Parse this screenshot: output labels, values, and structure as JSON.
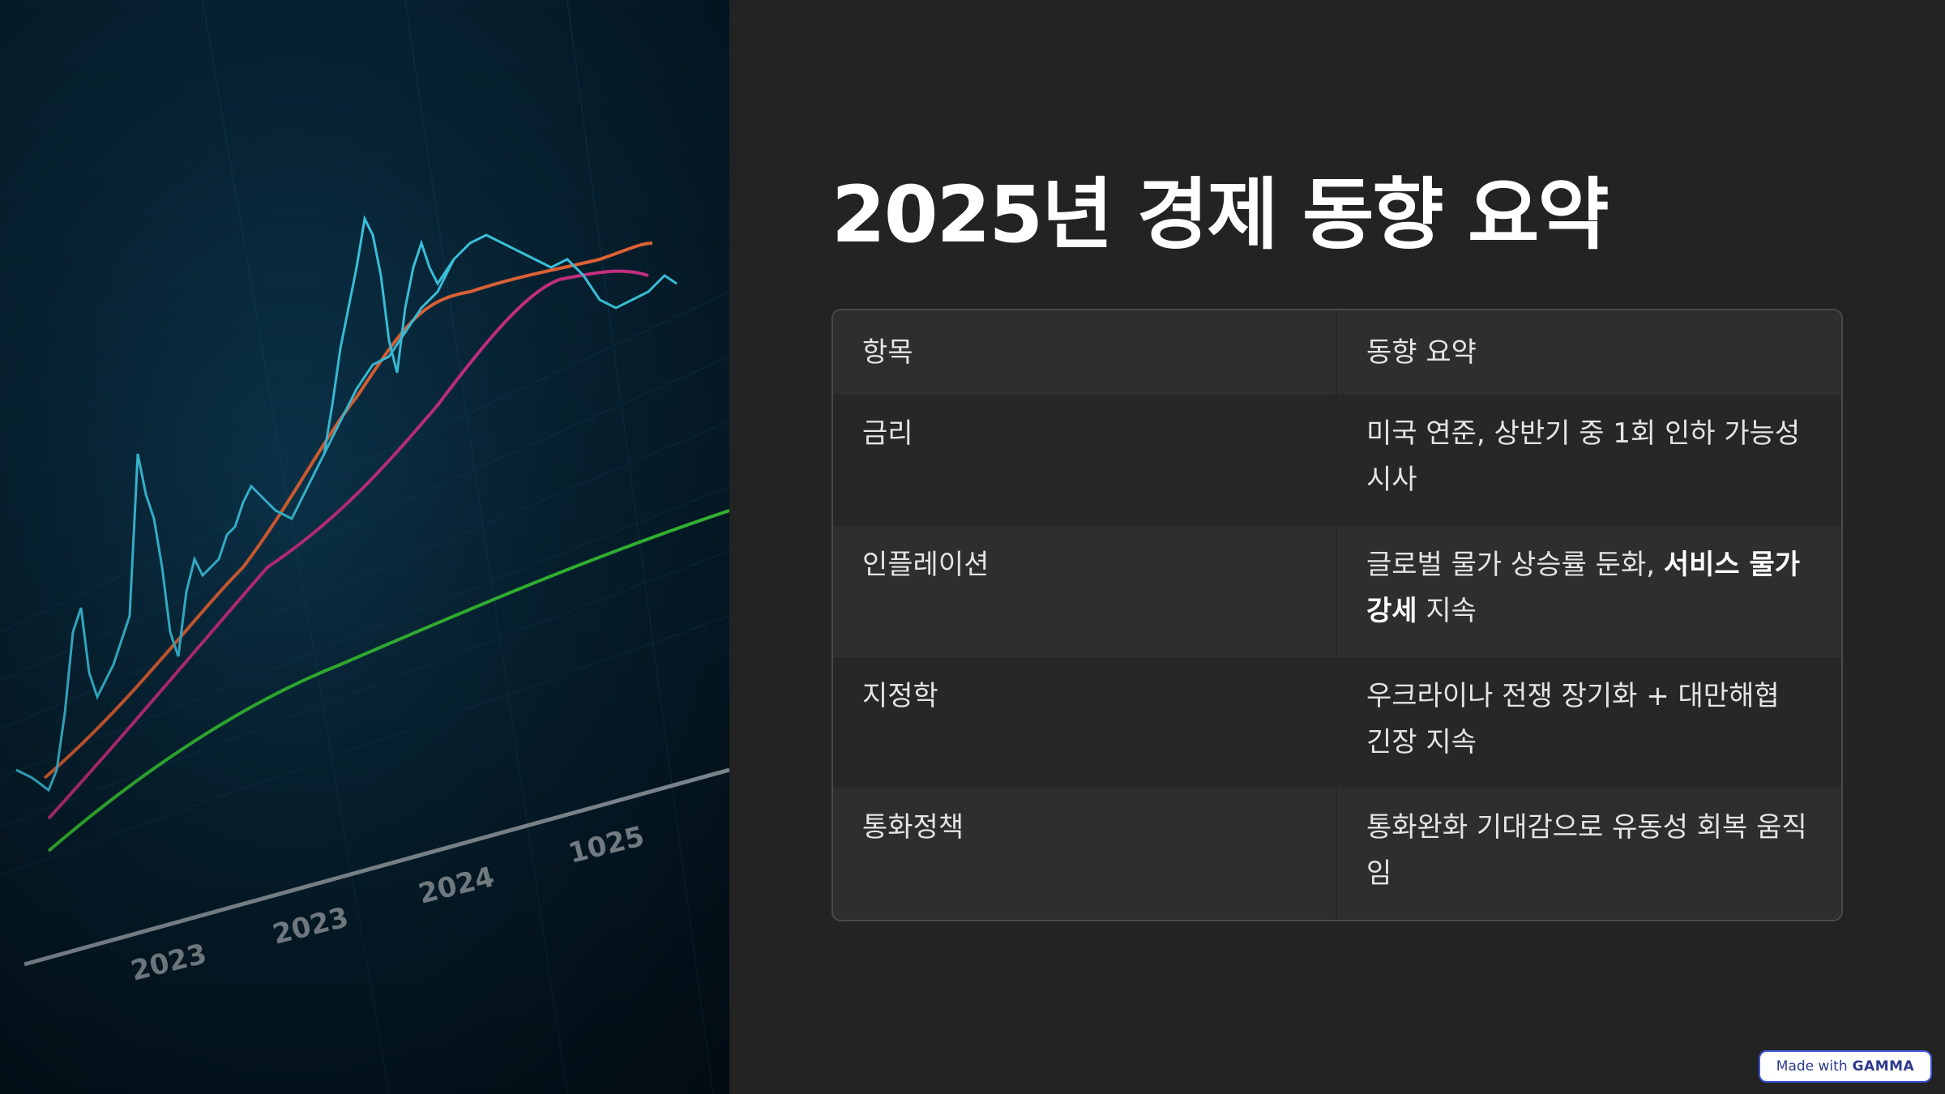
{
  "slide": {
    "title": "2025년 경제 동향 요약"
  },
  "table": {
    "headers": [
      "항목",
      "동향 요약"
    ],
    "rows": [
      {
        "item": "금리",
        "summary": "미국 연준, 상반기 중 1회 인하 가능성 시사"
      },
      {
        "item": "인플레이션",
        "summary_plain_1": "글로벌 물가 상승률 둔화, ",
        "summary_bold": "서비스 물가 강세",
        "summary_plain_2": " 지속"
      },
      {
        "item": "지정학",
        "summary": "우크라이나 전쟁 장기화 + 대만해협 긴장 지속"
      },
      {
        "item": "통화정책",
        "summary": "통화완화 기대감으로 유동성 회복 움직임"
      }
    ]
  },
  "badge": {
    "prefix": "Made with",
    "brand": "GAMMA"
  },
  "colors": {
    "background": "#232323",
    "title": "#ffffff",
    "badge_border": "#3b54d8"
  }
}
